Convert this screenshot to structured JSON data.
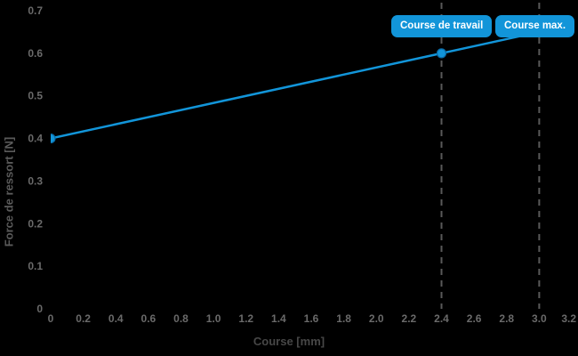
{
  "chart_data": {
    "type": "line",
    "title": "",
    "xlabel": "Course [mm]",
    "ylabel": "Force de ressort [N]",
    "xlim": [
      0,
      3.2
    ],
    "ylim": [
      0,
      0.7
    ],
    "grid": false,
    "legend": "none",
    "background": "#000000",
    "x_ticks": [
      0,
      0.2,
      0.4,
      0.6,
      0.8,
      1.0,
      1.2,
      1.4,
      1.6,
      1.8,
      2.0,
      2.2,
      2.4,
      2.6,
      2.8,
      3.0,
      3.2
    ],
    "x_tick_labels": [
      "0",
      "0.2",
      "0.4",
      "0.6",
      "0.8",
      "1.0",
      "1.2",
      "1.4",
      "1.6",
      "1.8",
      "2.0",
      "2.2",
      "2.4",
      "2.6",
      "2.8",
      "3.0",
      "3.2"
    ],
    "y_ticks": [
      0,
      0.1,
      0.2,
      0.3,
      0.4,
      0.5,
      0.6,
      0.7
    ],
    "y_tick_labels": [
      "0",
      "0.1",
      "0.2",
      "0.3",
      "0.4",
      "0.5",
      "0.6",
      "0.7"
    ],
    "series": [
      {
        "name": "Force de ressort",
        "color": "#1295d9",
        "points": [
          {
            "x": 0,
            "y": 0.4,
            "marker": true
          },
          {
            "x": 2.4,
            "y": 0.6,
            "marker": true
          },
          {
            "x": 3.0,
            "y": 0.65,
            "marker": false
          }
        ]
      }
    ],
    "plotlines": [
      {
        "label": "Course de travail",
        "x": 2.4
      },
      {
        "label": "Course max.",
        "x": 3.0
      }
    ],
    "colors": {
      "accent": "#1295d9",
      "marker_stroke": "#0a6aa5",
      "tick_label": "#6a6a6a",
      "axis_title": "#4f4f4f",
      "plotline": "#595959",
      "label_text": "#ffffff"
    }
  }
}
